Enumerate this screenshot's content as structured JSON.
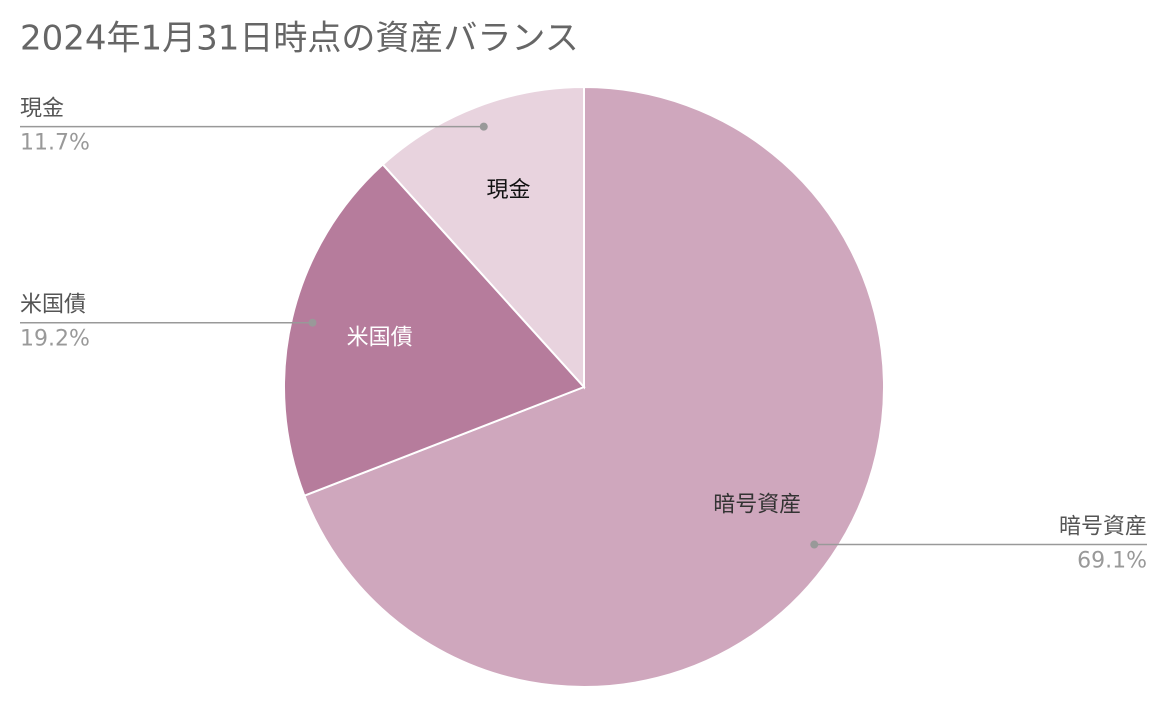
{
  "chart_data": {
    "type": "pie",
    "title": "2024年1月31日時点の資産バランス",
    "categories": [
      "暗号資産",
      "米国債",
      "現金"
    ],
    "values": [
      69.1,
      19.2,
      11.7
    ],
    "value_labels": [
      "69.1%",
      "19.2%",
      "11.7%"
    ],
    "colors": [
      "#cfa7bd",
      "#b67c9c",
      "#e8d3de"
    ]
  }
}
